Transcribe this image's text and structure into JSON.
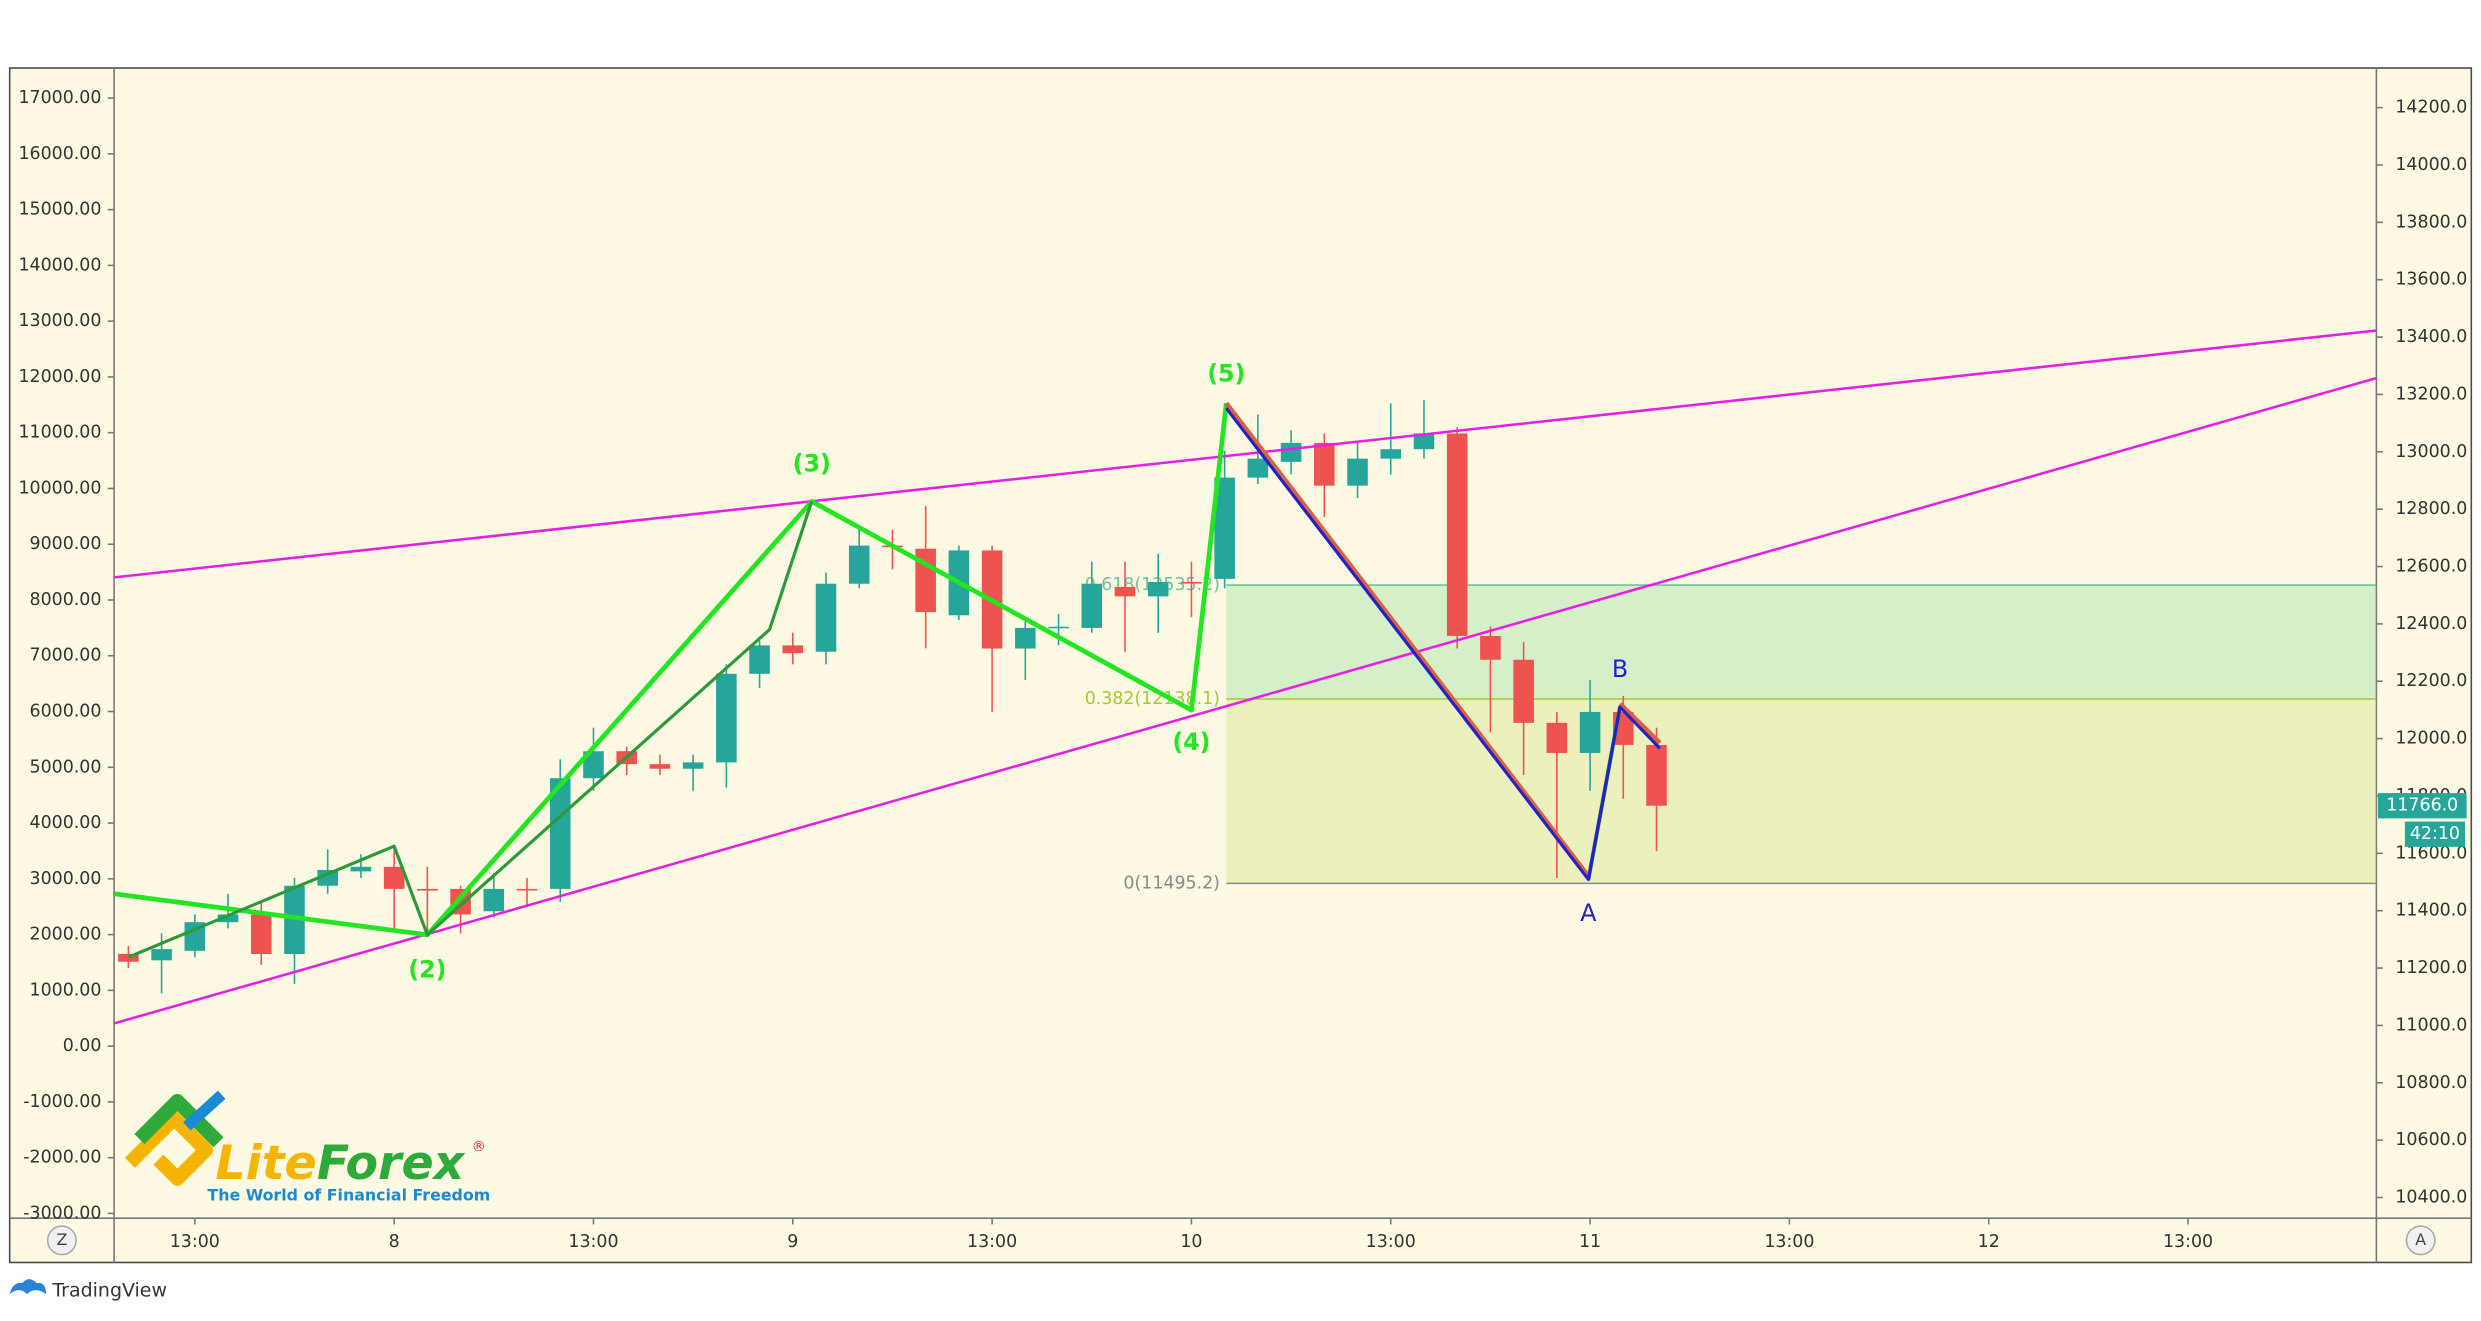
{
  "chart_data": {
    "type": "candlestick",
    "categories": [
      null,
      null,
      null,
      null,
      null,
      null,
      null,
      null,
      null,
      null,
      null,
      null,
      null,
      null,
      null,
      null,
      null,
      null,
      null,
      null,
      null,
      null,
      null,
      null,
      null,
      null,
      null,
      null,
      null,
      null,
      null,
      null,
      null,
      null,
      null,
      null,
      null,
      null,
      null,
      null,
      null,
      null,
      null,
      null,
      null,
      null,
      null
    ],
    "open": [
      11249,
      11227,
      11260,
      11360,
      11387,
      11249,
      11487,
      11537,
      11553,
      11476,
      11476,
      11398,
      11476,
      11476,
      11862,
      11956,
      11911,
      11895,
      11917,
      12226,
      12325,
      12303,
      12540,
      12673,
      12662,
      12430,
      12656,
      12314,
      12386,
      12386,
      12529,
      12496,
      12546,
      12557,
      12910,
      12965,
      13031,
      12882,
      12976,
      13009,
      13064,
      12358,
      12275,
      12055,
      11950,
      12093,
      11978
    ],
    "high": [
      11277,
      11321,
      11387,
      11459,
      11431,
      11514,
      11614,
      11597,
      11625,
      11553,
      11487,
      11531,
      11514,
      11928,
      12038,
      11972,
      11944,
      11944,
      12259,
      12342,
      12369,
      12579,
      12728,
      12728,
      12811,
      12673,
      12673,
      12424,
      12435,
      12617,
      12617,
      12645,
      12617,
      13003,
      13130,
      13075,
      13064,
      13031,
      13169,
      13180,
      13086,
      12391,
      12336,
      12093,
      12204,
      12149,
      12038
    ],
    "low": [
      11200,
      11112,
      11238,
      11338,
      11211,
      11145,
      11459,
      11514,
      11332,
      11321,
      11321,
      11376,
      11420,
      11431,
      11818,
      11873,
      11873,
      11818,
      11829,
      12176,
      12259,
      12259,
      12524,
      12590,
      12314,
      12413,
      12093,
      12204,
      12325,
      12369,
      12303,
      12369,
      12424,
      12524,
      12888,
      12921,
      12772,
      12838,
      12921,
      12976,
      12314,
      12022,
      11873,
      11514,
      11818,
      11790,
      11608
    ],
    "close": [
      11222,
      11266,
      11360,
      11387,
      11249,
      11487,
      11542,
      11553,
      11476,
      11470,
      11387,
      11476,
      11474,
      11862,
      11956,
      11911,
      11895,
      11917,
      12226,
      12325,
      12298,
      12540,
      12673,
      12668,
      12441,
      12656,
      12314,
      12386,
      12390,
      12540,
      12496,
      12546,
      12542,
      12910,
      12976,
      13031,
      12882,
      12976,
      13009,
      13064,
      12358,
      12275,
      12055,
      11950,
      12093,
      11978,
      11766
    ],
    "up_color": "#26a69a",
    "down_color": "#ef5350",
    "xlim": [
      -0.43,
      67.67
    ],
    "xticks": [
      {
        "value": 2,
        "label": "13:00"
      },
      {
        "value": 8,
        "label": "8"
      },
      {
        "value": 14,
        "label": "13:00"
      },
      {
        "value": 20,
        "label": "9"
      },
      {
        "value": 26,
        "label": "13:00"
      },
      {
        "value": 32,
        "label": "10"
      },
      {
        "value": 38,
        "label": "13:00"
      },
      {
        "value": 44,
        "label": "11"
      },
      {
        "value": 50,
        "label": "13:00"
      },
      {
        "value": 56,
        "label": "12"
      },
      {
        "value": 62,
        "label": "13:00"
      }
    ],
    "ylim": [
      10328,
      14338
    ],
    "yticks": [
      {
        "value": 10400,
        "label": "10400.0"
      },
      {
        "value": 10600,
        "label": "10600.0"
      },
      {
        "value": 10800,
        "label": "10800.0"
      },
      {
        "value": 11000,
        "label": "11000.0"
      },
      {
        "value": 11200,
        "label": "11200.0"
      },
      {
        "value": 11400,
        "label": "11400.0"
      },
      {
        "value": 11600,
        "label": "11600.0"
      },
      {
        "value": 11800,
        "label": "11800.0"
      },
      {
        "value": 12000,
        "label": "12000.0"
      },
      {
        "value": 12200,
        "label": "12200.0"
      },
      {
        "value": 12400,
        "label": "12400.0"
      },
      {
        "value": 12600,
        "label": "12600.0"
      },
      {
        "value": 12800,
        "label": "12800.0"
      },
      {
        "value": 13000,
        "label": "13000.0"
      },
      {
        "value": 13200,
        "label": "13200.0"
      },
      {
        "value": 13400,
        "label": "13400.0"
      },
      {
        "value": 13600,
        "label": "13600.0"
      },
      {
        "value": 13800,
        "label": "13800.0"
      },
      {
        "value": 14000,
        "label": "14000.0"
      },
      {
        "value": 14200,
        "label": "14200.0"
      }
    ],
    "y2lim": [
      -3085,
      17539
    ],
    "y2ticks": [
      {
        "value": -3000,
        "label": "-3000.00"
      },
      {
        "value": -2000,
        "label": "-2000.00"
      },
      {
        "value": -1000,
        "label": "-1000.00"
      },
      {
        "value": 0,
        "label": "0.00"
      },
      {
        "value": 1000,
        "label": "1000.00"
      },
      {
        "value": 2000,
        "label": "2000.00"
      },
      {
        "value": 3000,
        "label": "3000.00"
      },
      {
        "value": 4000,
        "label": "4000.00"
      },
      {
        "value": 5000,
        "label": "5000.00"
      },
      {
        "value": 6000,
        "label": "6000.00"
      },
      {
        "value": 7000,
        "label": "7000.00"
      },
      {
        "value": 8000,
        "label": "8000.00"
      },
      {
        "value": 9000,
        "label": "9000.00"
      },
      {
        "value": 10000,
        "label": "10000.00"
      },
      {
        "value": 11000,
        "label": "11000.00"
      },
      {
        "value": 12000,
        "label": "12000.00"
      },
      {
        "value": 13000,
        "label": "13000.00"
      },
      {
        "value": 14000,
        "label": "14000.00"
      },
      {
        "value": 15000,
        "label": "15000.00"
      },
      {
        "value": 16000,
        "label": "16000.00"
      },
      {
        "value": 17000,
        "label": "17000.00"
      }
    ],
    "grid": false,
    "fib": {
      "start": 33.05,
      "levels": [
        {
          "value": 11495.2,
          "label": "0(11495.2)",
          "color": "#8a8a8a"
        },
        {
          "value": 12138.1,
          "label": "0.382(12138.1)",
          "color": "#a5c83a"
        },
        {
          "value": 12535.2,
          "label": "0.618(12535.2)",
          "color": "#6cc49a"
        }
      ],
      "zone_colors": [
        "rgba(190,220,90,0.28)",
        "rgba(120,215,140,0.30)"
      ]
    },
    "lines": [
      {
        "color": "#e61ee6",
        "width": 1.6,
        "x": [
          -0.43,
          67.67
        ],
        "y": [
          12562,
          13423
        ]
      },
      {
        "color": "#e61ee6",
        "width": 1.6,
        "x": [
          -0.43,
          67.67
        ],
        "y": [
          11007,
          13257
        ]
      },
      {
        "color": "#22e622",
        "width": 3,
        "x": [
          -0.43,
          9,
          20.57,
          32,
          33.05
        ],
        "y": [
          11459,
          11316,
          12827,
          12099,
          13169
        ]
      },
      {
        "color": "#2a9a3a",
        "width": 2,
        "x": [
          0,
          8,
          9,
          19.3,
          20.57
        ],
        "y": [
          11238,
          11625,
          11316,
          12380,
          12827
        ]
      },
      {
        "color": "#2a9a3a",
        "width": 2.5,
        "x": [
          43.95,
          44.9
        ],
        "y": [
          11509,
          12110
        ]
      },
      {
        "color": "#e0603c",
        "width": 3,
        "x": [
          33.05,
          43.95
        ],
        "y": [
          13169,
          11520
        ]
      },
      {
        "color": "#e0603c",
        "width": 3,
        "x": [
          44.9,
          46.1
        ],
        "y": [
          12121,
          11985
        ]
      },
      {
        "color": "#2222c8",
        "width": 2,
        "x": [
          33.05,
          43.95,
          44.9,
          46.1
        ],
        "y": [
          13152,
          11509,
          12110,
          11966
        ]
      }
    ],
    "wave_labels": [
      {
        "label": "(2)",
        "x": 9,
        "y": 11189,
        "color": "#22e622"
      },
      {
        "label": "(3)",
        "x": 20.57,
        "y": 12954,
        "color": "#22e622"
      },
      {
        "label": "(4)",
        "x": 32,
        "y": 11983,
        "color": "#22e622"
      },
      {
        "label": "(5)",
        "x": 33.05,
        "y": 13268,
        "color": "#22e622"
      },
      {
        "label": "A",
        "x": 43.95,
        "y": 11387,
        "color": "#2222c8"
      },
      {
        "label": "B",
        "x": 44.9,
        "y": 12237,
        "color": "#2222c8"
      }
    ],
    "last_price": {
      "value": 11766,
      "label": "11766.0"
    },
    "countdown": "42:10"
  },
  "logo": {
    "title": "LiteForex",
    "mark": "®",
    "tagline": "The World of Financial Freedom"
  },
  "controls": {
    "left": "Z",
    "right": "A"
  },
  "footer": {
    "brand": "TradingView"
  }
}
